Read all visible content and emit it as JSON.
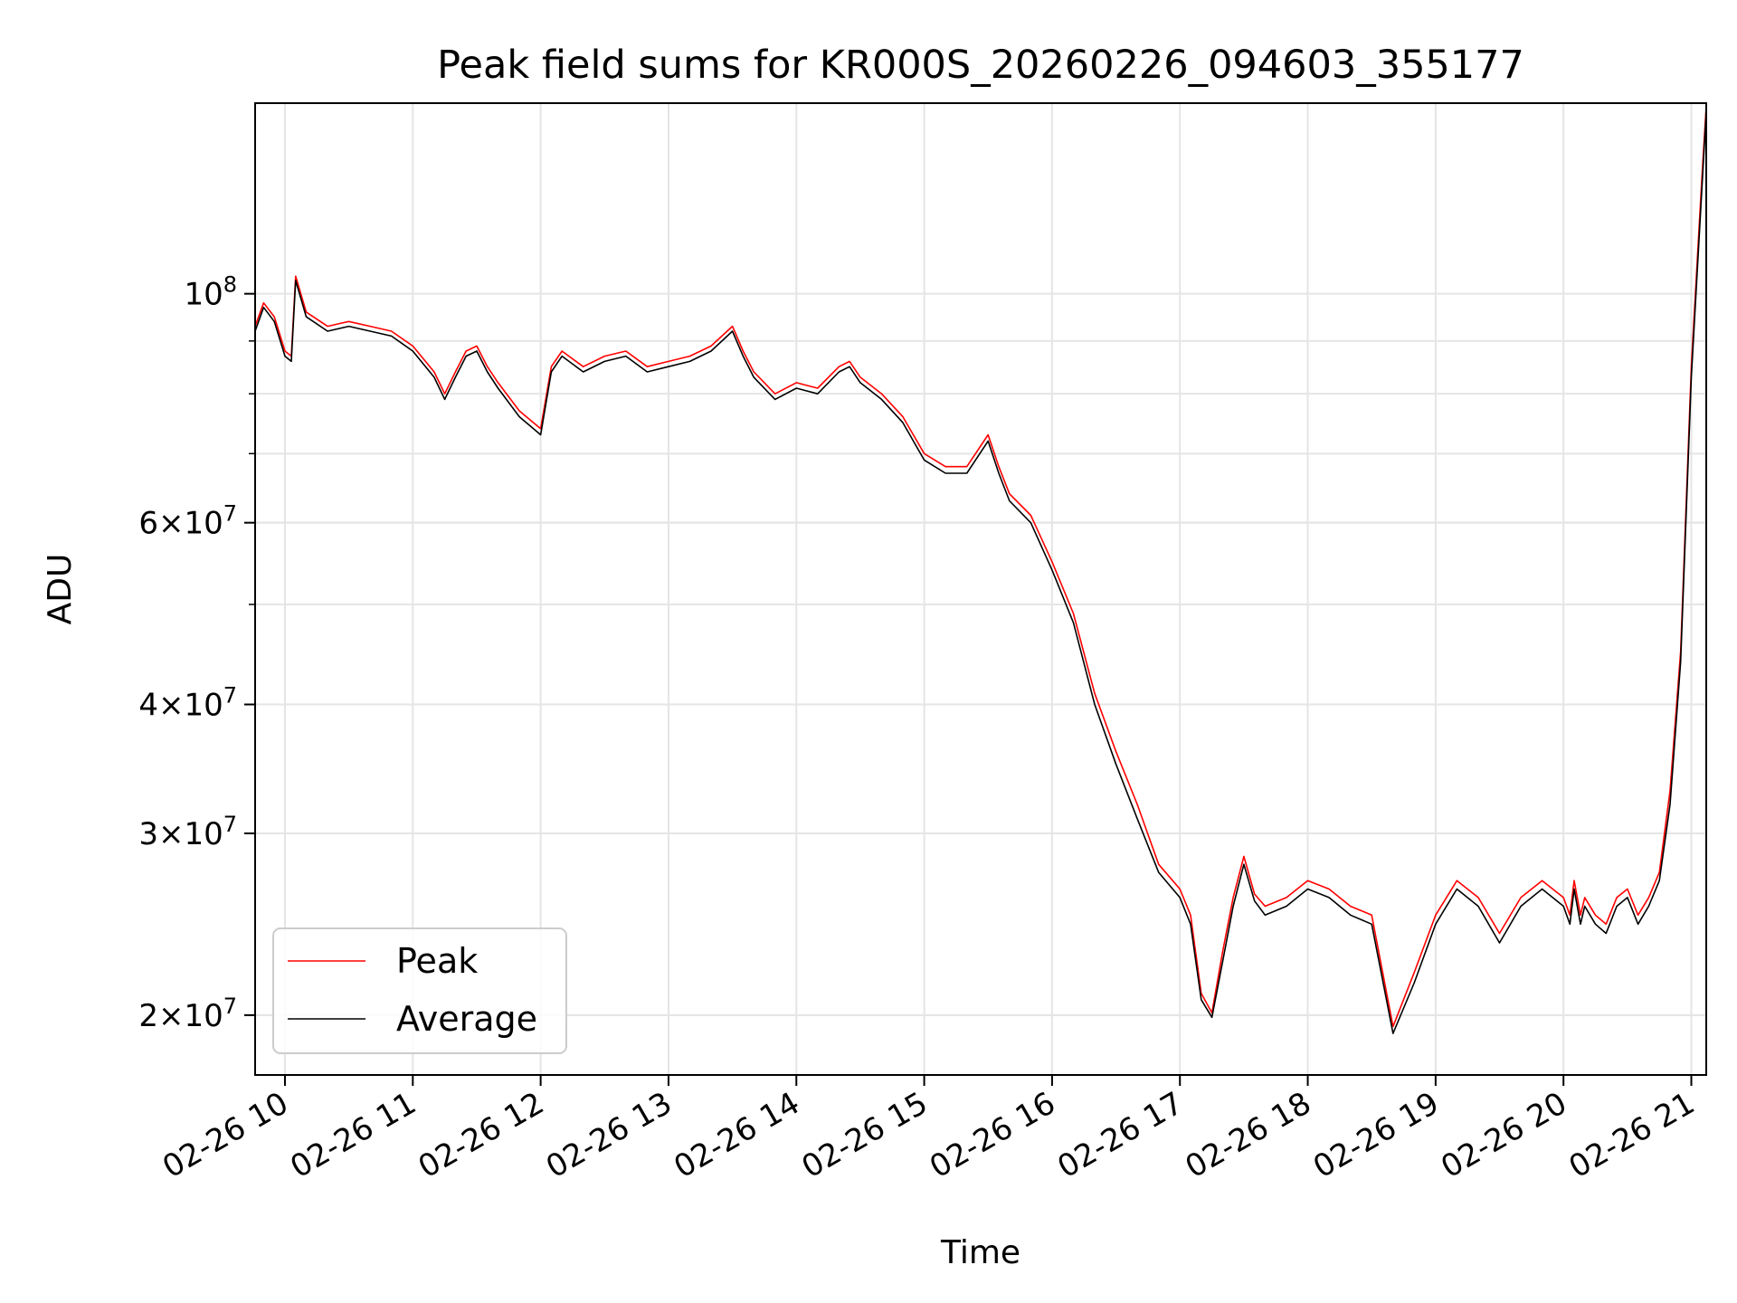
{
  "chart_data": {
    "type": "line",
    "title": "Peak field sums for KR000S_20260226_094603_355177",
    "xlabel": "Time",
    "ylabel": "ADU",
    "yscale": "log",
    "grid": true,
    "legend_position": "lower-left",
    "xlim": [
      "2026-02-26 09:46",
      "2026-02-26 21:07"
    ],
    "ylim": [
      17500000,
      153000000
    ],
    "x_tick_labels": [
      "02-26 10",
      "02-26 11",
      "02-26 12",
      "02-26 13",
      "02-26 14",
      "02-26 15",
      "02-26 16",
      "02-26 17",
      "02-26 18",
      "02-26 19",
      "02-26 20",
      "02-26 21"
    ],
    "y_tick_labels": [
      {
        "value": 100000000,
        "mant": "",
        "exp": "8"
      },
      {
        "value": 60000000,
        "mant": "6",
        "exp": "7"
      },
      {
        "value": 40000000,
        "mant": "4",
        "exp": "7"
      },
      {
        "value": 30000000,
        "mant": "3",
        "exp": "7"
      },
      {
        "value": 20000000,
        "mant": "2",
        "exp": "7"
      }
    ],
    "y_minor_ticks": [
      20000000,
      30000000,
      40000000,
      50000000,
      60000000,
      70000000,
      80000000,
      90000000
    ],
    "x": [
      "09:46",
      "09:50",
      "09:55",
      "10:00",
      "10:03",
      "10:05",
      "10:10",
      "10:20",
      "10:30",
      "10:40",
      "10:50",
      "11:00",
      "11:10",
      "11:15",
      "11:20",
      "11:25",
      "11:30",
      "11:35",
      "11:40",
      "11:50",
      "12:00",
      "12:05",
      "12:10",
      "12:20",
      "12:30",
      "12:40",
      "12:50",
      "13:00",
      "13:10",
      "13:20",
      "13:30",
      "13:35",
      "13:40",
      "13:50",
      "14:00",
      "14:10",
      "14:20",
      "14:25",
      "14:30",
      "14:40",
      "14:50",
      "15:00",
      "15:10",
      "15:20",
      "15:30",
      "15:35",
      "15:40",
      "15:50",
      "16:00",
      "16:10",
      "16:20",
      "16:30",
      "16:40",
      "16:50",
      "17:00",
      "17:05",
      "17:10",
      "17:15",
      "17:20",
      "17:25",
      "17:30",
      "17:35",
      "17:40",
      "17:50",
      "18:00",
      "18:10",
      "18:20",
      "18:30",
      "18:40",
      "18:50",
      "19:00",
      "19:10",
      "19:20",
      "19:30",
      "19:40",
      "19:50",
      "20:00",
      "20:03",
      "20:05",
      "20:08",
      "20:10",
      "20:15",
      "20:20",
      "20:25",
      "20:30",
      "20:35",
      "20:40",
      "20:45",
      "20:50",
      "20:55",
      "21:00",
      "21:05",
      "21:07"
    ],
    "series": [
      {
        "name": "Peak",
        "color": "#ff0000",
        "values": [
          93000000,
          98000000,
          95000000,
          88000000,
          87000000,
          104000000,
          96000000,
          93000000,
          94000000,
          93000000,
          92000000,
          89000000,
          84000000,
          80000000,
          84000000,
          88000000,
          89000000,
          85000000,
          82000000,
          77000000,
          74000000,
          85000000,
          88000000,
          85000000,
          87000000,
          88000000,
          85000000,
          86000000,
          87000000,
          89000000,
          93000000,
          88000000,
          84000000,
          80000000,
          82000000,
          81000000,
          85000000,
          86000000,
          83000000,
          80000000,
          76000000,
          70000000,
          68000000,
          68000000,
          73000000,
          68000000,
          64000000,
          61000000,
          55000000,
          49000000,
          41000000,
          36000000,
          32000000,
          28000000,
          26500000,
          25000000,
          21000000,
          20100000,
          23000000,
          26000000,
          28500000,
          26200000,
          25500000,
          26000000,
          27000000,
          26500000,
          25500000,
          25000000,
          19500000,
          22000000,
          25000000,
          27000000,
          26000000,
          24000000,
          26000000,
          27000000,
          26000000,
          25000000,
          27000000,
          25000000,
          26000000,
          25000000,
          24500000,
          26000000,
          26500000,
          25000000,
          26000000,
          27500000,
          33000000,
          45000000,
          85000000,
          130000000,
          152000000
        ]
      },
      {
        "name": "Average",
        "color": "#000000",
        "values": [
          92000000,
          97000000,
          94000000,
          87000000,
          86000000,
          103000000,
          95000000,
          92000000,
          93000000,
          92000000,
          91000000,
          88000000,
          83000000,
          79000000,
          83000000,
          87000000,
          88000000,
          84000000,
          81000000,
          76000000,
          73000000,
          84000000,
          87000000,
          84000000,
          86000000,
          87000000,
          84000000,
          85000000,
          86000000,
          88000000,
          92000000,
          87000000,
          83000000,
          79000000,
          81000000,
          80000000,
          84000000,
          85000000,
          82000000,
          79000000,
          75000000,
          69000000,
          67000000,
          67000000,
          72000000,
          67000000,
          63000000,
          60000000,
          54000000,
          48000000,
          40000000,
          35000000,
          31000000,
          27500000,
          26000000,
          24500000,
          20700000,
          19900000,
          22500000,
          25500000,
          28000000,
          25800000,
          25000000,
          25500000,
          26500000,
          26000000,
          25000000,
          24500000,
          19200000,
          21500000,
          24500000,
          26500000,
          25500000,
          23500000,
          25500000,
          26500000,
          25500000,
          24500000,
          26500000,
          24500000,
          25500000,
          24500000,
          24000000,
          25500000,
          26000000,
          24500000,
          25500000,
          27000000,
          32000000,
          44000000,
          83000000,
          127000000,
          150000000
        ]
      }
    ]
  }
}
